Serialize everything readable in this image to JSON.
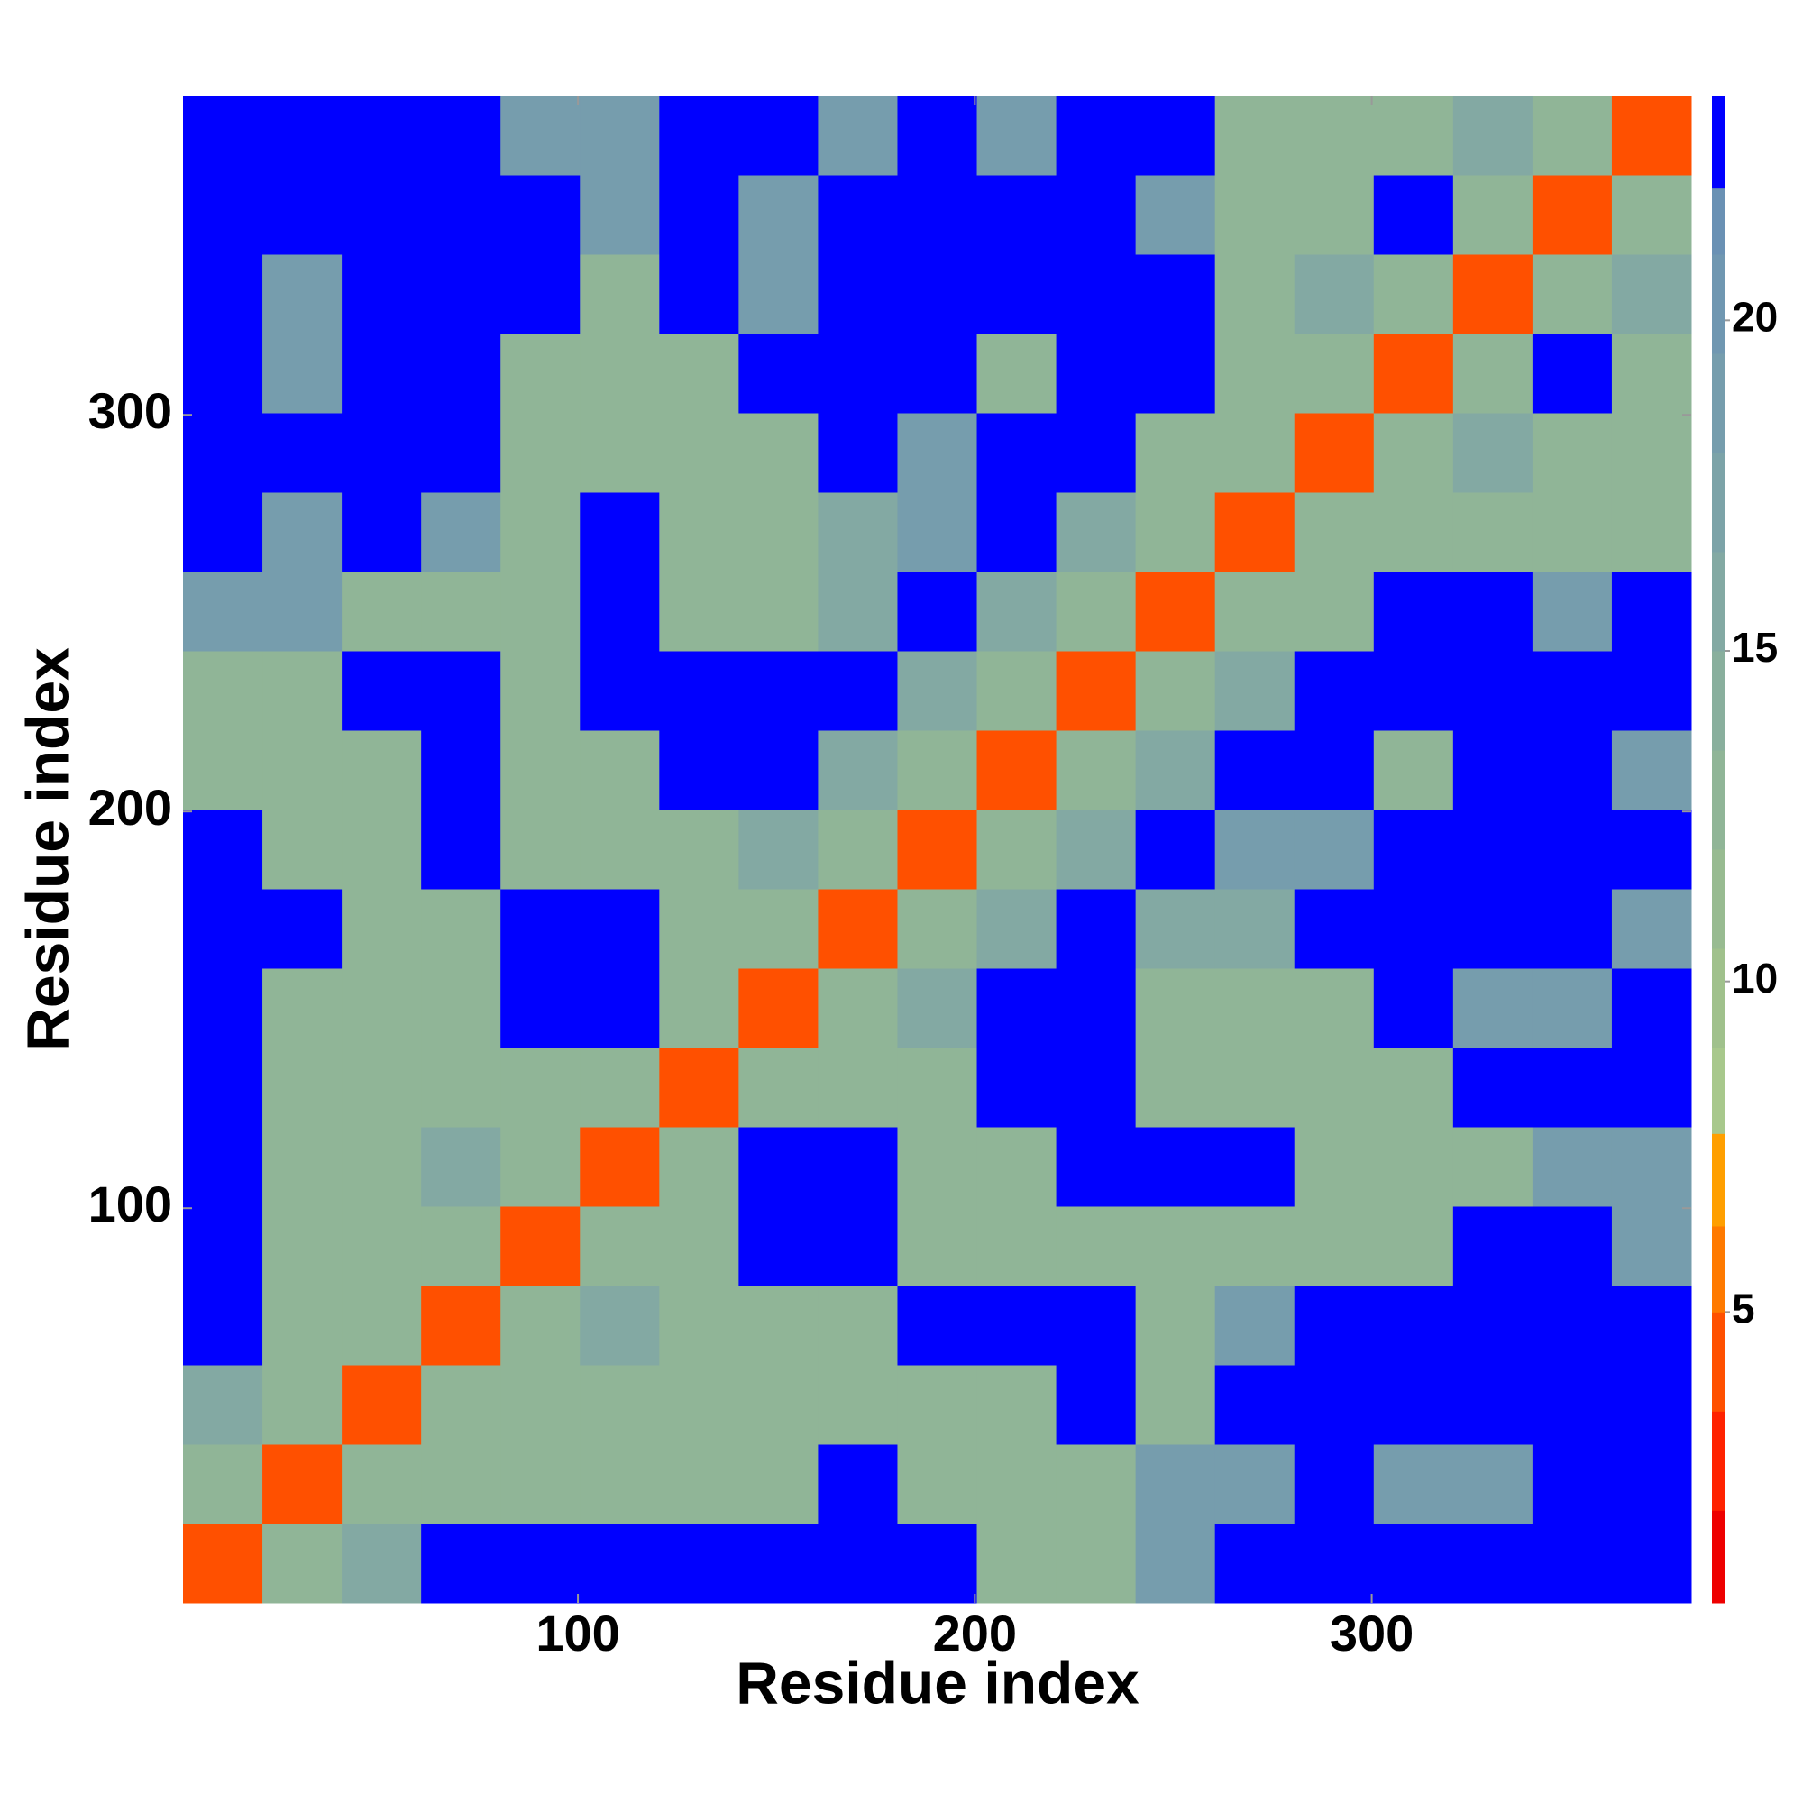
{
  "chart_data": {
    "type": "heatmap",
    "xlabel": "Residue index",
    "ylabel": "Residue index",
    "x": [
      10.5,
      30.5,
      50.5,
      70.5,
      90.5,
      110.5,
      130.5,
      150.5,
      170.5,
      190.5,
      210.5,
      230.5,
      250.5,
      270.5,
      290.5,
      310.5,
      330.5,
      350.5,
      370.5
    ],
    "y": [
      10.5,
      30.5,
      50.5,
      70.5,
      90.5,
      110.5,
      130.5,
      150.5,
      170.5,
      190.5,
      210.5,
      230.5,
      250.5,
      270.5,
      290.5,
      310.5,
      330.5,
      350.5,
      370.5
    ],
    "z": [
      [
        4,
        12,
        15,
        23,
        23,
        23,
        23,
        23,
        23,
        23,
        12,
        12,
        18,
        23,
        23,
        23,
        23,
        23,
        23
      ],
      [
        12,
        4,
        12,
        12,
        12,
        12,
        12,
        12,
        23,
        12,
        12,
        12,
        18,
        18,
        23,
        18,
        18,
        23,
        23
      ],
      [
        15,
        12,
        4,
        12,
        12,
        12,
        12,
        12,
        12,
        12,
        12,
        23,
        12,
        23,
        23,
        23,
        23,
        23,
        23
      ],
      [
        23,
        12,
        12,
        4,
        12,
        15,
        12,
        12,
        12,
        23,
        23,
        23,
        12,
        18,
        23,
        23,
        23,
        23,
        23
      ],
      [
        23,
        12,
        12,
        12,
        4,
        12,
        12,
        23,
        23,
        12,
        12,
        12,
        12,
        12,
        12,
        12,
        23,
        23,
        18
      ],
      [
        23,
        12,
        12,
        15,
        12,
        4,
        12,
        23,
        23,
        12,
        12,
        23,
        23,
        23,
        12,
        12,
        12,
        18,
        18
      ],
      [
        23,
        12,
        12,
        12,
        12,
        12,
        4,
        12,
        12,
        12,
        23,
        23,
        12,
        12,
        12,
        12,
        23,
        23,
        23
      ],
      [
        23,
        12,
        12,
        12,
        23,
        23,
        12,
        4,
        12,
        15,
        23,
        23,
        12,
        12,
        12,
        23,
        18,
        18,
        23
      ],
      [
        23,
        23,
        12,
        12,
        23,
        23,
        12,
        12,
        4,
        12,
        15,
        23,
        15,
        15,
        23,
        23,
        23,
        23,
        18
      ],
      [
        23,
        12,
        12,
        23,
        12,
        12,
        12,
        15,
        12,
        4,
        12,
        15,
        23,
        18,
        18,
        23,
        23,
        23,
        23
      ],
      [
        12,
        12,
        12,
        23,
        12,
        12,
        23,
        23,
        15,
        12,
        4,
        12,
        15,
        23,
        23,
        12,
        23,
        23,
        18
      ],
      [
        12,
        12,
        23,
        23,
        12,
        23,
        23,
        23,
        23,
        15,
        12,
        4,
        12,
        15,
        23,
        23,
        23,
        23,
        23
      ],
      [
        18,
        18,
        12,
        12,
        12,
        23,
        12,
        12,
        15,
        23,
        15,
        12,
        4,
        12,
        12,
        23,
        23,
        18,
        23
      ],
      [
        23,
        18,
        23,
        18,
        12,
        23,
        12,
        12,
        15,
        18,
        23,
        15,
        12,
        4,
        12,
        12,
        12,
        12,
        12
      ],
      [
        23,
        23,
        23,
        23,
        12,
        12,
        12,
        12,
        23,
        18,
        23,
        23,
        12,
        12,
        4,
        12,
        15,
        12,
        12
      ],
      [
        23,
        18,
        23,
        23,
        12,
        12,
        12,
        23,
        23,
        23,
        12,
        23,
        23,
        12,
        12,
        4,
        12,
        23,
        12
      ],
      [
        23,
        18,
        23,
        23,
        23,
        12,
        23,
        18,
        23,
        23,
        23,
        23,
        23,
        12,
        15,
        12,
        4,
        12,
        15
      ],
      [
        23,
        23,
        23,
        23,
        23,
        18,
        23,
        18,
        23,
        23,
        23,
        23,
        18,
        12,
        12,
        23,
        12,
        4,
        12
      ],
      [
        23,
        23,
        23,
        23,
        18,
        18,
        23,
        23,
        18,
        23,
        18,
        23,
        23,
        12,
        12,
        12,
        15,
        12,
        4
      ]
    ],
    "xlim": [
      0.5,
      380.5
    ],
    "ylim": [
      0.5,
      380.5
    ],
    "xticks": [
      100,
      200,
      300
    ],
    "yticks": [
      100,
      200,
      300
    ],
    "colorbar": {
      "lim": [
        0.6,
        23.4
      ],
      "ticks": [
        5,
        10,
        15,
        20
      ],
      "bounds": [
        0.6,
        2,
        3.5,
        5,
        6.3,
        7.7,
        9,
        10.5,
        12,
        13.5,
        15,
        16.5,
        18,
        19.5,
        21,
        22,
        23.4
      ],
      "colors": [
        "#ee0000",
        "#ff2200",
        "#ff5000",
        "#ff7a00",
        "#ff9f00",
        "#a8c88c",
        "#a0c18c",
        "#98bb91",
        "#90b597",
        "#89af9d",
        "#83a9a3",
        "#7ca3a8",
        "#769dad",
        "#7097b1",
        "#6a91b4",
        "#0000ff"
      ]
    }
  }
}
